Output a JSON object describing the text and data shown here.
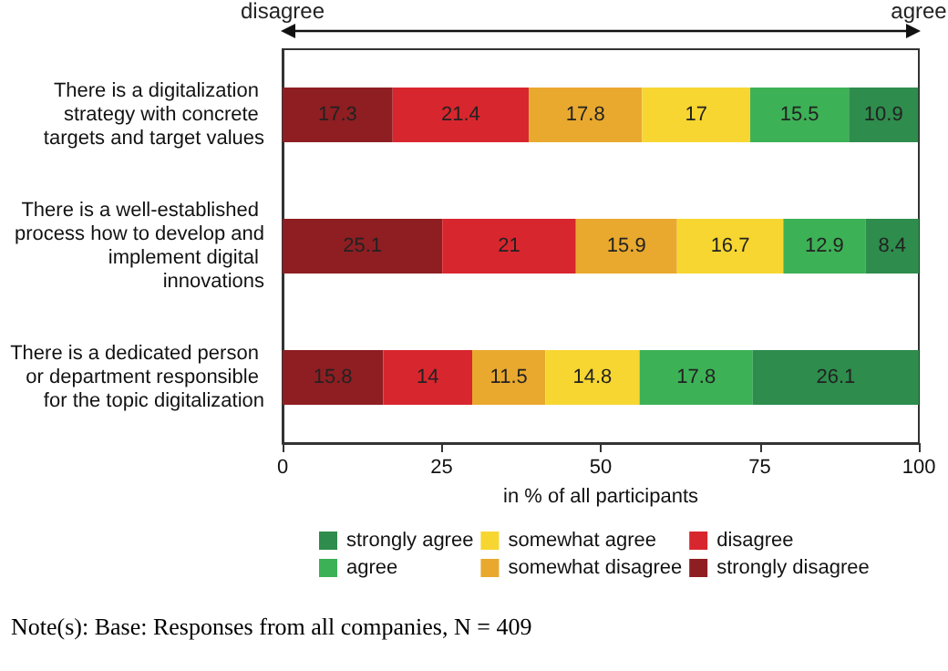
{
  "chart_data": {
    "type": "bar",
    "orientation": "horizontal",
    "stacked": true,
    "categories": [
      "There is a digitalization strategy with concrete targets and target values",
      "There is a well-established process how to develop and implement digital innovations",
      "There is a dedicated person or department responsible for the topic digitalization"
    ],
    "series": [
      {
        "name": "strongly disagree",
        "color": "#8e1e22",
        "values": [
          17.3,
          25.1,
          15.8
        ]
      },
      {
        "name": "disagree",
        "color": "#d8262e",
        "values": [
          21.4,
          21,
          14
        ]
      },
      {
        "name": "somewhat disagree",
        "color": "#e9a92e",
        "values": [
          17.8,
          15.9,
          11.5
        ]
      },
      {
        "name": "somewhat agree",
        "color": "#f7d631",
        "values": [
          17,
          16.7,
          14.8
        ]
      },
      {
        "name": "agree",
        "color": "#3db156",
        "values": [
          15.5,
          12.9,
          17.8
        ]
      },
      {
        "name": "strongly agree",
        "color": "#2e8c4c",
        "values": [
          10.9,
          8.4,
          26.1
        ]
      }
    ],
    "xlabel": "in % of all participants",
    "xlim": [
      0,
      100
    ],
    "xticks": [
      0,
      25,
      50,
      75,
      100
    ],
    "grid": false,
    "legend": "bottom",
    "data_labels": true,
    "annotations": [
      "disagree",
      "agree",
      "Note(s): Base: Responses from all companies, N = 409"
    ]
  }
}
